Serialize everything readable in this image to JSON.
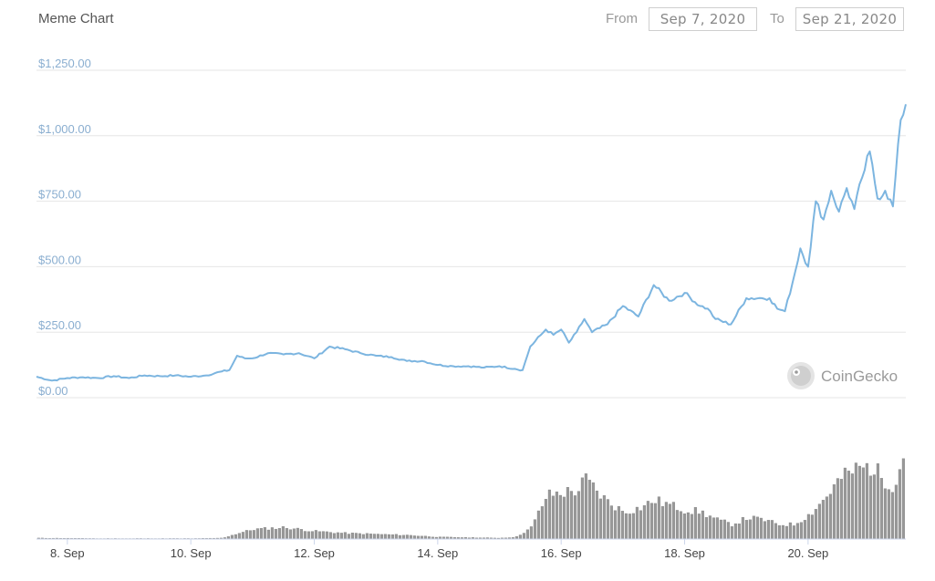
{
  "header": {
    "title": "Meme Chart",
    "from_label": "From",
    "from_value": "Sep 7, 2020",
    "to_label": "To",
    "to_value": "Sep 21, 2020"
  },
  "watermark": {
    "text": "CoinGecko"
  },
  "colors": {
    "price_line": "#7cb5e0",
    "volume_bar": "#999999",
    "grid": "#e6e6e6",
    "ytick": "#8aaed0"
  },
  "chart_data": {
    "type": "line",
    "title": "Meme Chart",
    "xlabel": "",
    "ylabel": "",
    "ylim": [
      0,
      1250
    ],
    "y_ticks": [
      "$0.00",
      "$250.00",
      "$500.00",
      "$750.00",
      "$1,000.00",
      "$1,250.00"
    ],
    "y_tick_values": [
      0,
      250,
      500,
      750,
      1000,
      1250
    ],
    "x_range": [
      "2020-09-07T12:00",
      "2020-09-21T14:00"
    ],
    "x_ticks": [
      {
        "label": "8. Sep",
        "date": "2020-09-08"
      },
      {
        "label": "10. Sep",
        "date": "2020-09-10"
      },
      {
        "label": "12. Sep",
        "date": "2020-09-12"
      },
      {
        "label": "14. Sep",
        "date": "2020-09-14"
      },
      {
        "label": "16. Sep",
        "date": "2020-09-16"
      },
      {
        "label": "18. Sep",
        "date": "2020-09-18"
      },
      {
        "label": "20. Sep",
        "date": "2020-09-20"
      }
    ],
    "grid": true,
    "legend": "none",
    "series": [
      {
        "kind": "price",
        "x": [
          "2020-09-07T12:00",
          "2020-09-07T18:00",
          "2020-09-08T00:00",
          "2020-09-08T06:00",
          "2020-09-08T12:00",
          "2020-09-08T18:00",
          "2020-09-09T00:00",
          "2020-09-09T06:00",
          "2020-09-09T12:00",
          "2020-09-09T18:00",
          "2020-09-10T00:00",
          "2020-09-10T06:00",
          "2020-09-10T12:00",
          "2020-09-10T15:00",
          "2020-09-10T18:00",
          "2020-09-10T21:00",
          "2020-09-11T00:00",
          "2020-09-11T06:00",
          "2020-09-11T12:00",
          "2020-09-11T18:00",
          "2020-09-12T00:00",
          "2020-09-12T06:00",
          "2020-09-12T12:00",
          "2020-09-12T18:00",
          "2020-09-13T00:00",
          "2020-09-13T06:00",
          "2020-09-13T12:00",
          "2020-09-13T18:00",
          "2020-09-14T00:00",
          "2020-09-14T06:00",
          "2020-09-14T12:00",
          "2020-09-14T18:00",
          "2020-09-15T00:00",
          "2020-09-15T06:00",
          "2020-09-15T09:00",
          "2020-09-15T12:00",
          "2020-09-15T18:00",
          "2020-09-15T21:00",
          "2020-09-16T00:00",
          "2020-09-16T03:00",
          "2020-09-16T06:00",
          "2020-09-16T09:00",
          "2020-09-16T12:00",
          "2020-09-16T18:00",
          "2020-09-17T00:00",
          "2020-09-17T06:00",
          "2020-09-17T12:00",
          "2020-09-17T18:00",
          "2020-09-18T00:00",
          "2020-09-18T06:00",
          "2020-09-18T09:00",
          "2020-09-18T12:00",
          "2020-09-18T18:00",
          "2020-09-19T00:00",
          "2020-09-19T06:00",
          "2020-09-19T09:00",
          "2020-09-19T12:00",
          "2020-09-19T15:00",
          "2020-09-19T18:00",
          "2020-09-19T21:00",
          "2020-09-20T00:00",
          "2020-09-20T03:00",
          "2020-09-20T06:00",
          "2020-09-20T09:00",
          "2020-09-20T12:00",
          "2020-09-20T15:00",
          "2020-09-20T18:00",
          "2020-09-20T21:00",
          "2020-09-21T00:00",
          "2020-09-21T03:00",
          "2020-09-21T06:00",
          "2020-09-21T09:00",
          "2020-09-21T12:00",
          "2020-09-21T14:00"
        ],
        "values": [
          80,
          65,
          75,
          78,
          75,
          82,
          75,
          85,
          82,
          85,
          80,
          85,
          100,
          105,
          160,
          150,
          150,
          170,
          165,
          170,
          150,
          195,
          185,
          170,
          160,
          155,
          140,
          140,
          125,
          120,
          120,
          115,
          120,
          110,
          105,
          195,
          260,
          240,
          260,
          210,
          250,
          300,
          250,
          280,
          350,
          310,
          430,
          370,
          400,
          350,
          340,
          300,
          280,
          380,
          380,
          380,
          340,
          330,
          440,
          570,
          500,
          750,
          680,
          790,
          710,
          800,
          720,
          840,
          940,
          760,
          790,
          730,
          1060,
          1120
        ]
      },
      {
        "kind": "volume",
        "x": [
          "2020-09-07T12:00",
          "2020-09-08T12:00",
          "2020-09-09T12:00",
          "2020-09-10T00:00",
          "2020-09-10T12:00",
          "2020-09-10T18:00",
          "2020-09-11T00:00",
          "2020-09-11T12:00",
          "2020-09-12T00:00",
          "2020-09-12T12:00",
          "2020-09-13T00:00",
          "2020-09-13T12:00",
          "2020-09-14T00:00",
          "2020-09-14T12:00",
          "2020-09-15T00:00",
          "2020-09-15T06:00",
          "2020-09-15T12:00",
          "2020-09-15T18:00",
          "2020-09-16T00:00",
          "2020-09-16T06:00",
          "2020-09-16T09:00",
          "2020-09-16T15:00",
          "2020-09-16T18:00",
          "2020-09-17T00:00",
          "2020-09-17T06:00",
          "2020-09-17T12:00",
          "2020-09-17T18:00",
          "2020-09-18T00:00",
          "2020-09-18T06:00",
          "2020-09-18T12:00",
          "2020-09-18T18:00",
          "2020-09-19T00:00",
          "2020-09-19T06:00",
          "2020-09-19T12:00",
          "2020-09-19T18:00",
          "2020-09-20T00:00",
          "2020-09-20T06:00",
          "2020-09-20T12:00",
          "2020-09-20T18:00",
          "2020-09-21T00:00",
          "2020-09-21T06:00",
          "2020-09-21T09:00",
          "2020-09-21T12:00",
          "2020-09-21T14:00"
        ],
        "values": [
          1,
          0.5,
          0.5,
          0.5,
          1,
          6,
          10,
          12,
          8,
          6,
          5,
          4,
          2,
          1.5,
          1,
          2,
          12,
          45,
          48,
          50,
          62,
          45,
          38,
          28,
          32,
          40,
          35,
          30,
          28,
          20,
          15,
          22,
          20,
          15,
          15,
          25,
          42,
          62,
          72,
          75,
          60,
          55,
          80,
          100
        ]
      }
    ]
  }
}
